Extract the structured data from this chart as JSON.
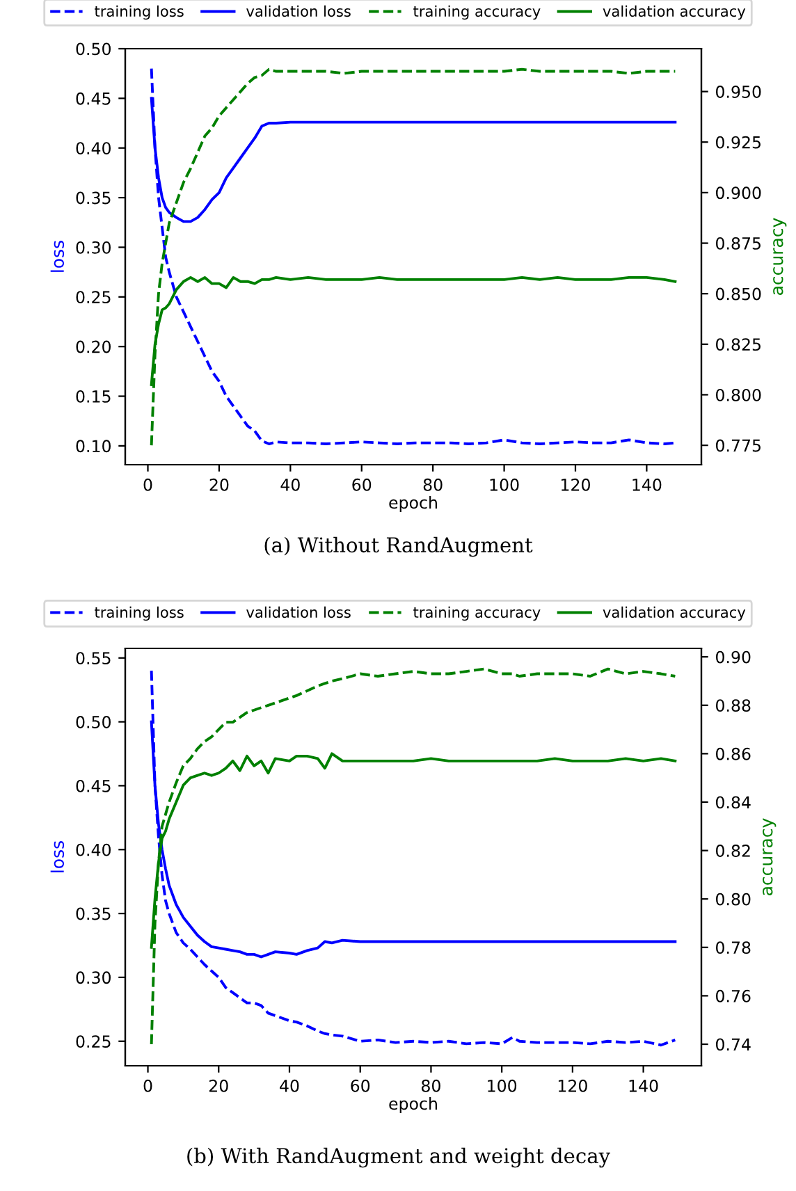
{
  "chart_data": [
    {
      "type": "line",
      "legend": "top",
      "xlabel": "epoch",
      "ylabel": "loss",
      "y2label": "accuracy",
      "annotations": [
        "(a) Without RandAugment"
      ],
      "x": [
        1,
        2,
        3,
        4,
        5,
        6,
        8,
        10,
        12,
        14,
        16,
        18,
        20,
        22,
        24,
        26,
        28,
        30,
        32,
        34,
        36,
        40,
        45,
        50,
        55,
        60,
        65,
        70,
        75,
        80,
        85,
        90,
        95,
        100,
        105,
        110,
        115,
        120,
        125,
        130,
        135,
        140,
        145,
        148
      ],
      "xlim": [
        -6.35,
        155.35
      ],
      "xticks": [
        0,
        20,
        40,
        60,
        80,
        100,
        120,
        140
      ],
      "ylim": [
        0.081,
        0.5
      ],
      "yticks": [
        {
          "value": 0.1,
          "label": "0.10"
        },
        0.15,
        {
          "value": 0.2,
          "label": "0.20"
        },
        0.25,
        {
          "value": 0.3,
          "label": "0.30"
        },
        0.35,
        {
          "value": 0.4,
          "label": "0.40"
        },
        0.45,
        {
          "value": 0.5,
          "label": "0.50"
        }
      ],
      "y2lim": [
        0.7654,
        0.9712
      ],
      "y2ticks": [
        0.775,
        {
          "value": 0.8,
          "label": "0.800"
        },
        0.825,
        {
          "value": 0.85,
          "label": "0.850"
        },
        0.875,
        {
          "value": 0.9,
          "label": "0.900"
        },
        0.925,
        {
          "value": 0.95,
          "label": "0.950"
        }
      ],
      "series": [
        {
          "name": "training loss",
          "color": "#0000ff",
          "line_style": "dashed",
          "values": [
            0.48,
            0.4,
            0.35,
            0.32,
            0.29,
            0.275,
            0.25,
            0.235,
            0.22,
            0.205,
            0.19,
            0.175,
            0.165,
            0.15,
            0.14,
            0.13,
            0.12,
            0.115,
            0.105,
            0.102,
            0.104,
            0.103,
            0.103,
            0.102,
            0.103,
            0.104,
            0.103,
            0.102,
            0.103,
            0.103,
            0.103,
            0.102,
            0.103,
            0.106,
            0.103,
            0.102,
            0.103,
            0.104,
            0.103,
            0.103,
            0.106,
            0.103,
            0.102,
            0.103
          ]
        },
        {
          "name": "validation loss",
          "color": "#0000ff",
          "line_style": "solid",
          "values": [
            0.45,
            0.4,
            0.37,
            0.35,
            0.34,
            0.335,
            0.33,
            0.326,
            0.326,
            0.33,
            0.338,
            0.348,
            0.355,
            0.37,
            0.38,
            0.39,
            0.4,
            0.41,
            0.422,
            0.425,
            0.425,
            0.426,
            0.426,
            0.426,
            0.426,
            0.426,
            0.426,
            0.426,
            0.426,
            0.426,
            0.426,
            0.426,
            0.426,
            0.426,
            0.426,
            0.426,
            0.426,
            0.426,
            0.426,
            0.426,
            0.426,
            0.426,
            0.426,
            0.426
          ]
        },
        {
          "name": "training accuracy",
          "color": "#008000",
          "line_style": "dashed",
          "axis": "y2",
          "values": [
            0.775,
            0.82,
            0.85,
            0.865,
            0.875,
            0.885,
            0.895,
            0.905,
            0.912,
            0.92,
            0.928,
            0.932,
            0.938,
            0.942,
            0.946,
            0.95,
            0.954,
            0.957,
            0.958,
            0.961,
            0.96,
            0.96,
            0.96,
            0.96,
            0.959,
            0.96,
            0.96,
            0.96,
            0.96,
            0.96,
            0.96,
            0.96,
            0.96,
            0.96,
            0.961,
            0.96,
            0.96,
            0.96,
            0.96,
            0.96,
            0.959,
            0.96,
            0.96,
            0.96
          ]
        },
        {
          "name": "validation accuracy",
          "color": "#008000",
          "line_style": "solid",
          "axis": "y2",
          "values": [
            0.805,
            0.825,
            0.835,
            0.842,
            0.843,
            0.845,
            0.852,
            0.856,
            0.858,
            0.856,
            0.858,
            0.855,
            0.855,
            0.853,
            0.858,
            0.856,
            0.856,
            0.855,
            0.857,
            0.857,
            0.858,
            0.857,
            0.858,
            0.857,
            0.857,
            0.857,
            0.858,
            0.857,
            0.857,
            0.857,
            0.857,
            0.857,
            0.857,
            0.857,
            0.858,
            0.857,
            0.858,
            0.857,
            0.857,
            0.857,
            0.858,
            0.858,
            0.857,
            0.856
          ]
        }
      ]
    },
    {
      "type": "line",
      "legend": "top",
      "xlabel": "epoch",
      "ylabel": "loss",
      "y2label": "accuracy",
      "annotations": [
        "(b) With RandAugment and weight decay"
      ],
      "x": [
        1,
        2,
        3,
        4,
        5,
        6,
        8,
        10,
        12,
        14,
        16,
        18,
        20,
        22,
        24,
        26,
        28,
        30,
        32,
        34,
        36,
        40,
        42,
        45,
        48,
        50,
        52,
        55,
        60,
        65,
        70,
        75,
        80,
        85,
        90,
        95,
        100,
        103,
        105,
        110,
        115,
        120,
        125,
        130,
        135,
        140,
        145,
        149
      ],
      "xlim": [
        -6.4,
        156.4
      ],
      "xticks": [
        0,
        20,
        40,
        60,
        80,
        100,
        120,
        140
      ],
      "ylim": [
        0.2308,
        0.5575
      ],
      "yticks": [
        0.25,
        {
          "value": 0.3,
          "label": "0.30"
        },
        0.35,
        {
          "value": 0.4,
          "label": "0.40"
        },
        0.45,
        {
          "value": 0.5,
          "label": "0.50"
        },
        0.55
      ],
      "y2lim": [
        0.7311,
        0.9035
      ],
      "y2ticks": [
        0.74,
        0.76,
        0.78,
        {
          "value": 0.8,
          "label": "0.80"
        },
        0.82,
        0.84,
        0.86,
        0.88,
        {
          "value": 0.9,
          "label": "0.90"
        }
      ],
      "series": [
        {
          "name": "training loss",
          "color": "#0000ff",
          "line_style": "dashed",
          "values": [
            0.54,
            0.45,
            0.41,
            0.38,
            0.36,
            0.35,
            0.335,
            0.327,
            0.322,
            0.316,
            0.31,
            0.305,
            0.3,
            0.292,
            0.288,
            0.284,
            0.28,
            0.28,
            0.278,
            0.272,
            0.27,
            0.266,
            0.265,
            0.262,
            0.258,
            0.256,
            0.255,
            0.254,
            0.25,
            0.251,
            0.249,
            0.25,
            0.249,
            0.25,
            0.248,
            0.249,
            0.248,
            0.253,
            0.25,
            0.249,
            0.249,
            0.249,
            0.248,
            0.25,
            0.249,
            0.25,
            0.247,
            0.251
          ]
        },
        {
          "name": "validation loss",
          "color": "#0000ff",
          "line_style": "solid",
          "values": [
            0.5,
            0.45,
            0.42,
            0.4,
            0.385,
            0.372,
            0.357,
            0.347,
            0.34,
            0.333,
            0.328,
            0.324,
            0.323,
            0.322,
            0.321,
            0.32,
            0.318,
            0.318,
            0.316,
            0.318,
            0.32,
            0.319,
            0.318,
            0.321,
            0.323,
            0.328,
            0.327,
            0.329,
            0.328,
            0.328,
            0.328,
            0.328,
            0.328,
            0.328,
            0.328,
            0.328,
            0.328,
            0.328,
            0.328,
            0.328,
            0.328,
            0.328,
            0.328,
            0.328,
            0.328,
            0.328,
            0.328,
            0.328
          ]
        },
        {
          "name": "training accuracy",
          "color": "#008000",
          "line_style": "dashed",
          "axis": "y2",
          "values": [
            0.74,
            0.79,
            0.815,
            0.83,
            0.835,
            0.84,
            0.848,
            0.855,
            0.858,
            0.862,
            0.865,
            0.867,
            0.87,
            0.873,
            0.873,
            0.875,
            0.877,
            0.878,
            0.879,
            0.88,
            0.881,
            0.883,
            0.884,
            0.886,
            0.888,
            0.889,
            0.89,
            0.891,
            0.893,
            0.892,
            0.893,
            0.894,
            0.893,
            0.893,
            0.894,
            0.895,
            0.893,
            0.893,
            0.892,
            0.893,
            0.893,
            0.893,
            0.892,
            0.895,
            0.893,
            0.894,
            0.893,
            0.892
          ]
        },
        {
          "name": "validation accuracy",
          "color": "#008000",
          "line_style": "solid",
          "axis": "y2",
          "values": [
            0.78,
            0.8,
            0.815,
            0.825,
            0.828,
            0.833,
            0.84,
            0.847,
            0.85,
            0.851,
            0.852,
            0.851,
            0.852,
            0.854,
            0.857,
            0.853,
            0.859,
            0.855,
            0.857,
            0.852,
            0.858,
            0.857,
            0.859,
            0.859,
            0.858,
            0.854,
            0.86,
            0.857,
            0.857,
            0.857,
            0.857,
            0.857,
            0.858,
            0.857,
            0.857,
            0.857,
            0.857,
            0.857,
            0.857,
            0.857,
            0.858,
            0.857,
            0.857,
            0.857,
            0.858,
            0.857,
            0.858,
            0.857
          ]
        }
      ]
    }
  ]
}
